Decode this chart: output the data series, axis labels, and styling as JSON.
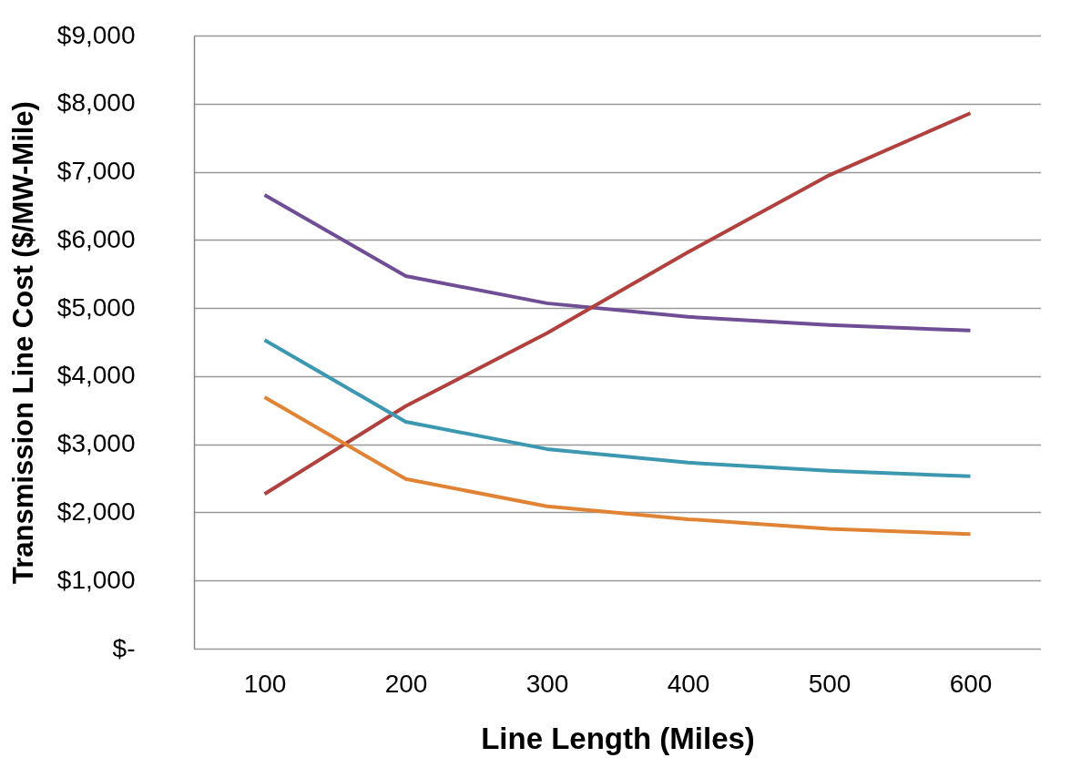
{
  "chart_data": {
    "type": "line",
    "xlabel": "Line Length (Miles)",
    "ylabel": "Transmission Line Cost ($/MW-Mile)",
    "categories": [
      "100",
      "200",
      "300",
      "400",
      "500",
      "600"
    ],
    "series": [
      {
        "color": "#6f4e96",
        "values": [
          6660,
          5470,
          5070,
          4870,
          4750,
          4670
        ]
      },
      {
        "color": "#b0413e",
        "values": [
          2270,
          3560,
          4630,
          5820,
          6950,
          7860
        ]
      },
      {
        "color": "#3c97b0",
        "values": [
          4530,
          3330,
          2930,
          2730,
          2610,
          2530
        ]
      },
      {
        "color": "#e08334",
        "values": [
          3690,
          2490,
          2090,
          1900,
          1760,
          1680
        ]
      }
    ],
    "ylim": [
      0,
      9000
    ],
    "yticks": [
      {
        "value": 0,
        "label": "$-"
      },
      {
        "value": 1000,
        "label": "$1,000"
      },
      {
        "value": 2000,
        "label": "$2,000"
      },
      {
        "value": 3000,
        "label": "$3,000"
      },
      {
        "value": 4000,
        "label": "$4,000"
      },
      {
        "value": 5000,
        "label": "$5,000"
      },
      {
        "value": 6000,
        "label": "$6,000"
      },
      {
        "value": 7000,
        "label": "$7,000"
      },
      {
        "value": 8000,
        "label": "$8,000"
      },
      {
        "value": 9000,
        "label": "$9,000"
      }
    ],
    "grid": "y",
    "marker": "none",
    "line_style": "solid"
  }
}
